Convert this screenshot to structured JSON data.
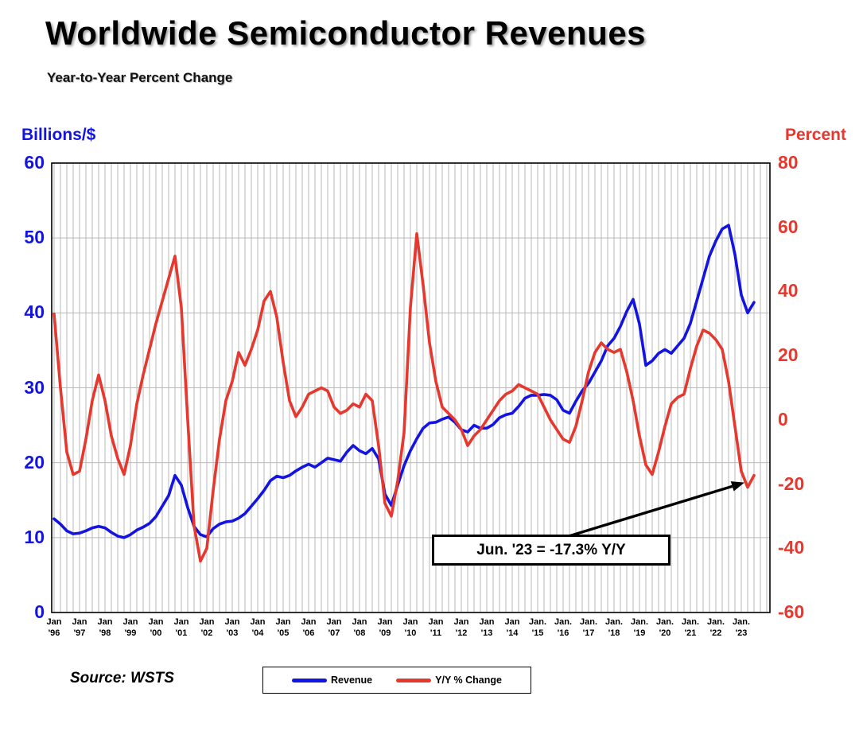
{
  "title": "Worldwide Semiconductor Revenues",
  "subtitle": "Year-to-Year Percent Change",
  "left_axis_title": "Billions/$",
  "right_axis_title": "Percent",
  "annotation": {
    "label": "Jun. '23 = -17.3% Y/Y"
  },
  "source": "Source: WSTS",
  "legend": {
    "items": [
      {
        "label": "Revenue",
        "color": "#1414e0"
      },
      {
        "label": "Y/Y % Change",
        "color": "#e5382e"
      }
    ]
  },
  "chart_data": {
    "type": "line",
    "dual_axis": true,
    "title": "Worldwide Semiconductor Revenues",
    "subtitle": "Year-to-Year Percent Change",
    "x_start": 1996.0,
    "x_step": 0.25,
    "x_end": 2023.5,
    "left_axis": {
      "label": "Billions/$",
      "range": [
        0,
        60
      ],
      "ticks": [
        60,
        50,
        40,
        30,
        20,
        10,
        0
      ],
      "color": "#1414e0"
    },
    "right_axis": {
      "label": "Percent",
      "range": [
        -60,
        80
      ],
      "ticks": [
        80,
        60,
        40,
        20,
        0,
        -20,
        -40,
        -60
      ],
      "color": "#e5382e"
    },
    "grid": {
      "vertical": "quarterly",
      "horizontal_step_left_axis": 10,
      "color": "#b9b9b9"
    },
    "legend_position": "bottom",
    "annotation": {
      "text": "Jun. '23 = -17.3% Y/Y",
      "points_to": {
        "x": 2023.5,
        "value_pct": -17.3
      }
    },
    "x_tick_labels": [
      {
        "month": "Jan",
        "year": "'96"
      },
      {
        "month": "Jan",
        "year": "'97"
      },
      {
        "month": "Jan",
        "year": "'98"
      },
      {
        "month": "Jan",
        "year": "'99"
      },
      {
        "month": "Jan",
        "year": "'00"
      },
      {
        "month": "Jan",
        "year": "'01"
      },
      {
        "month": "Jan",
        "year": "'02"
      },
      {
        "month": "Jan",
        "year": "'03"
      },
      {
        "month": "Jan",
        "year": "'04"
      },
      {
        "month": "Jan",
        "year": "'05"
      },
      {
        "month": "Jan",
        "year": "'06"
      },
      {
        "month": "Jan",
        "year": "'07"
      },
      {
        "month": "Jan",
        "year": "'08"
      },
      {
        "month": "Jan",
        "year": "'09"
      },
      {
        "month": "Jan",
        "year": "'10"
      },
      {
        "month": "Jan",
        "year": "'11"
      },
      {
        "month": "Jan",
        "year": "'12"
      },
      {
        "month": "Jan",
        "year": "'13"
      },
      {
        "month": "Jan",
        "year": "'14"
      },
      {
        "month": "Jan.",
        "year": "'15"
      },
      {
        "month": "Jan.",
        "year": "'16"
      },
      {
        "month": "Jan.",
        "year": "'17"
      },
      {
        "month": "Jan.",
        "year": "'18"
      },
      {
        "month": "Jan.",
        "year": "'19"
      },
      {
        "month": "Jan.",
        "year": "'20"
      },
      {
        "month": "Jan.",
        "year": "'21"
      },
      {
        "month": "Jan.",
        "year": "'22"
      },
      {
        "month": "Jan.",
        "year": "'23"
      }
    ],
    "series": [
      {
        "name": "Revenue",
        "axis": "left",
        "units": "billions USD per month (3-mo avg)",
        "color": "#1414e0",
        "values": [
          12.5,
          11.8,
          10.9,
          10.5,
          10.6,
          10.9,
          11.3,
          11.5,
          11.3,
          10.7,
          10.2,
          10.0,
          10.4,
          11.0,
          11.4,
          11.9,
          12.8,
          14.2,
          15.6,
          18.3,
          17.0,
          14.0,
          11.5,
          10.4,
          10.1,
          11.2,
          11.8,
          12.1,
          12.2,
          12.6,
          13.2,
          14.2,
          15.2,
          16.3,
          17.6,
          18.2,
          18.0,
          18.3,
          18.9,
          19.4,
          19.8,
          19.4,
          20.0,
          20.6,
          20.4,
          20.2,
          21.4,
          22.3,
          21.6,
          21.2,
          21.9,
          20.5,
          15.8,
          14.3,
          17.0,
          19.6,
          21.6,
          23.2,
          24.6,
          25.3,
          25.4,
          25.8,
          26.1,
          25.4,
          24.4,
          24.1,
          25.0,
          24.6,
          24.6,
          25.1,
          26.0,
          26.4,
          26.6,
          27.5,
          28.6,
          29.0,
          29.0,
          29.1,
          29.0,
          28.4,
          27.0,
          26.6,
          28.2,
          29.6,
          30.6,
          32.1,
          33.6,
          35.6,
          36.6,
          38.2,
          40.2,
          41.8,
          38.5,
          33.0,
          33.6,
          34.6,
          35.1,
          34.6,
          35.6,
          36.6,
          38.6,
          41.6,
          44.6,
          47.6,
          49.6,
          51.2,
          51.7,
          47.8,
          42.4,
          40.0,
          41.4
        ]
      },
      {
        "name": "Y/Y % Change",
        "axis": "right",
        "units": "percent",
        "color": "#e5382e",
        "values": [
          33,
          10,
          -10,
          -17,
          -16,
          -6,
          6,
          14,
          6,
          -5,
          -12,
          -17,
          -8,
          5,
          14,
          22,
          30,
          37,
          44,
          51,
          35,
          0,
          -33,
          -44,
          -40,
          -22,
          -6,
          6,
          12,
          21,
          17,
          22,
          28,
          37,
          40,
          32,
          18,
          6,
          1,
          4,
          8,
          9,
          10,
          9,
          4,
          2,
          3,
          5,
          4,
          8,
          6,
          -8,
          -26,
          -30,
          -19,
          -4,
          35,
          58,
          42,
          24,
          12,
          4,
          2,
          0,
          -3,
          -8,
          -5,
          -3,
          0,
          3,
          6,
          8,
          9,
          11,
          10,
          9,
          8,
          4,
          0,
          -3,
          -6,
          -7,
          -2,
          6,
          15,
          21,
          24,
          22,
          21,
          22,
          15,
          6,
          -5,
          -14,
          -17,
          -10,
          -2,
          5,
          7,
          8,
          16,
          23,
          28,
          27,
          25,
          22,
          12,
          -2,
          -16,
          -21,
          -17.3
        ]
      }
    ]
  }
}
